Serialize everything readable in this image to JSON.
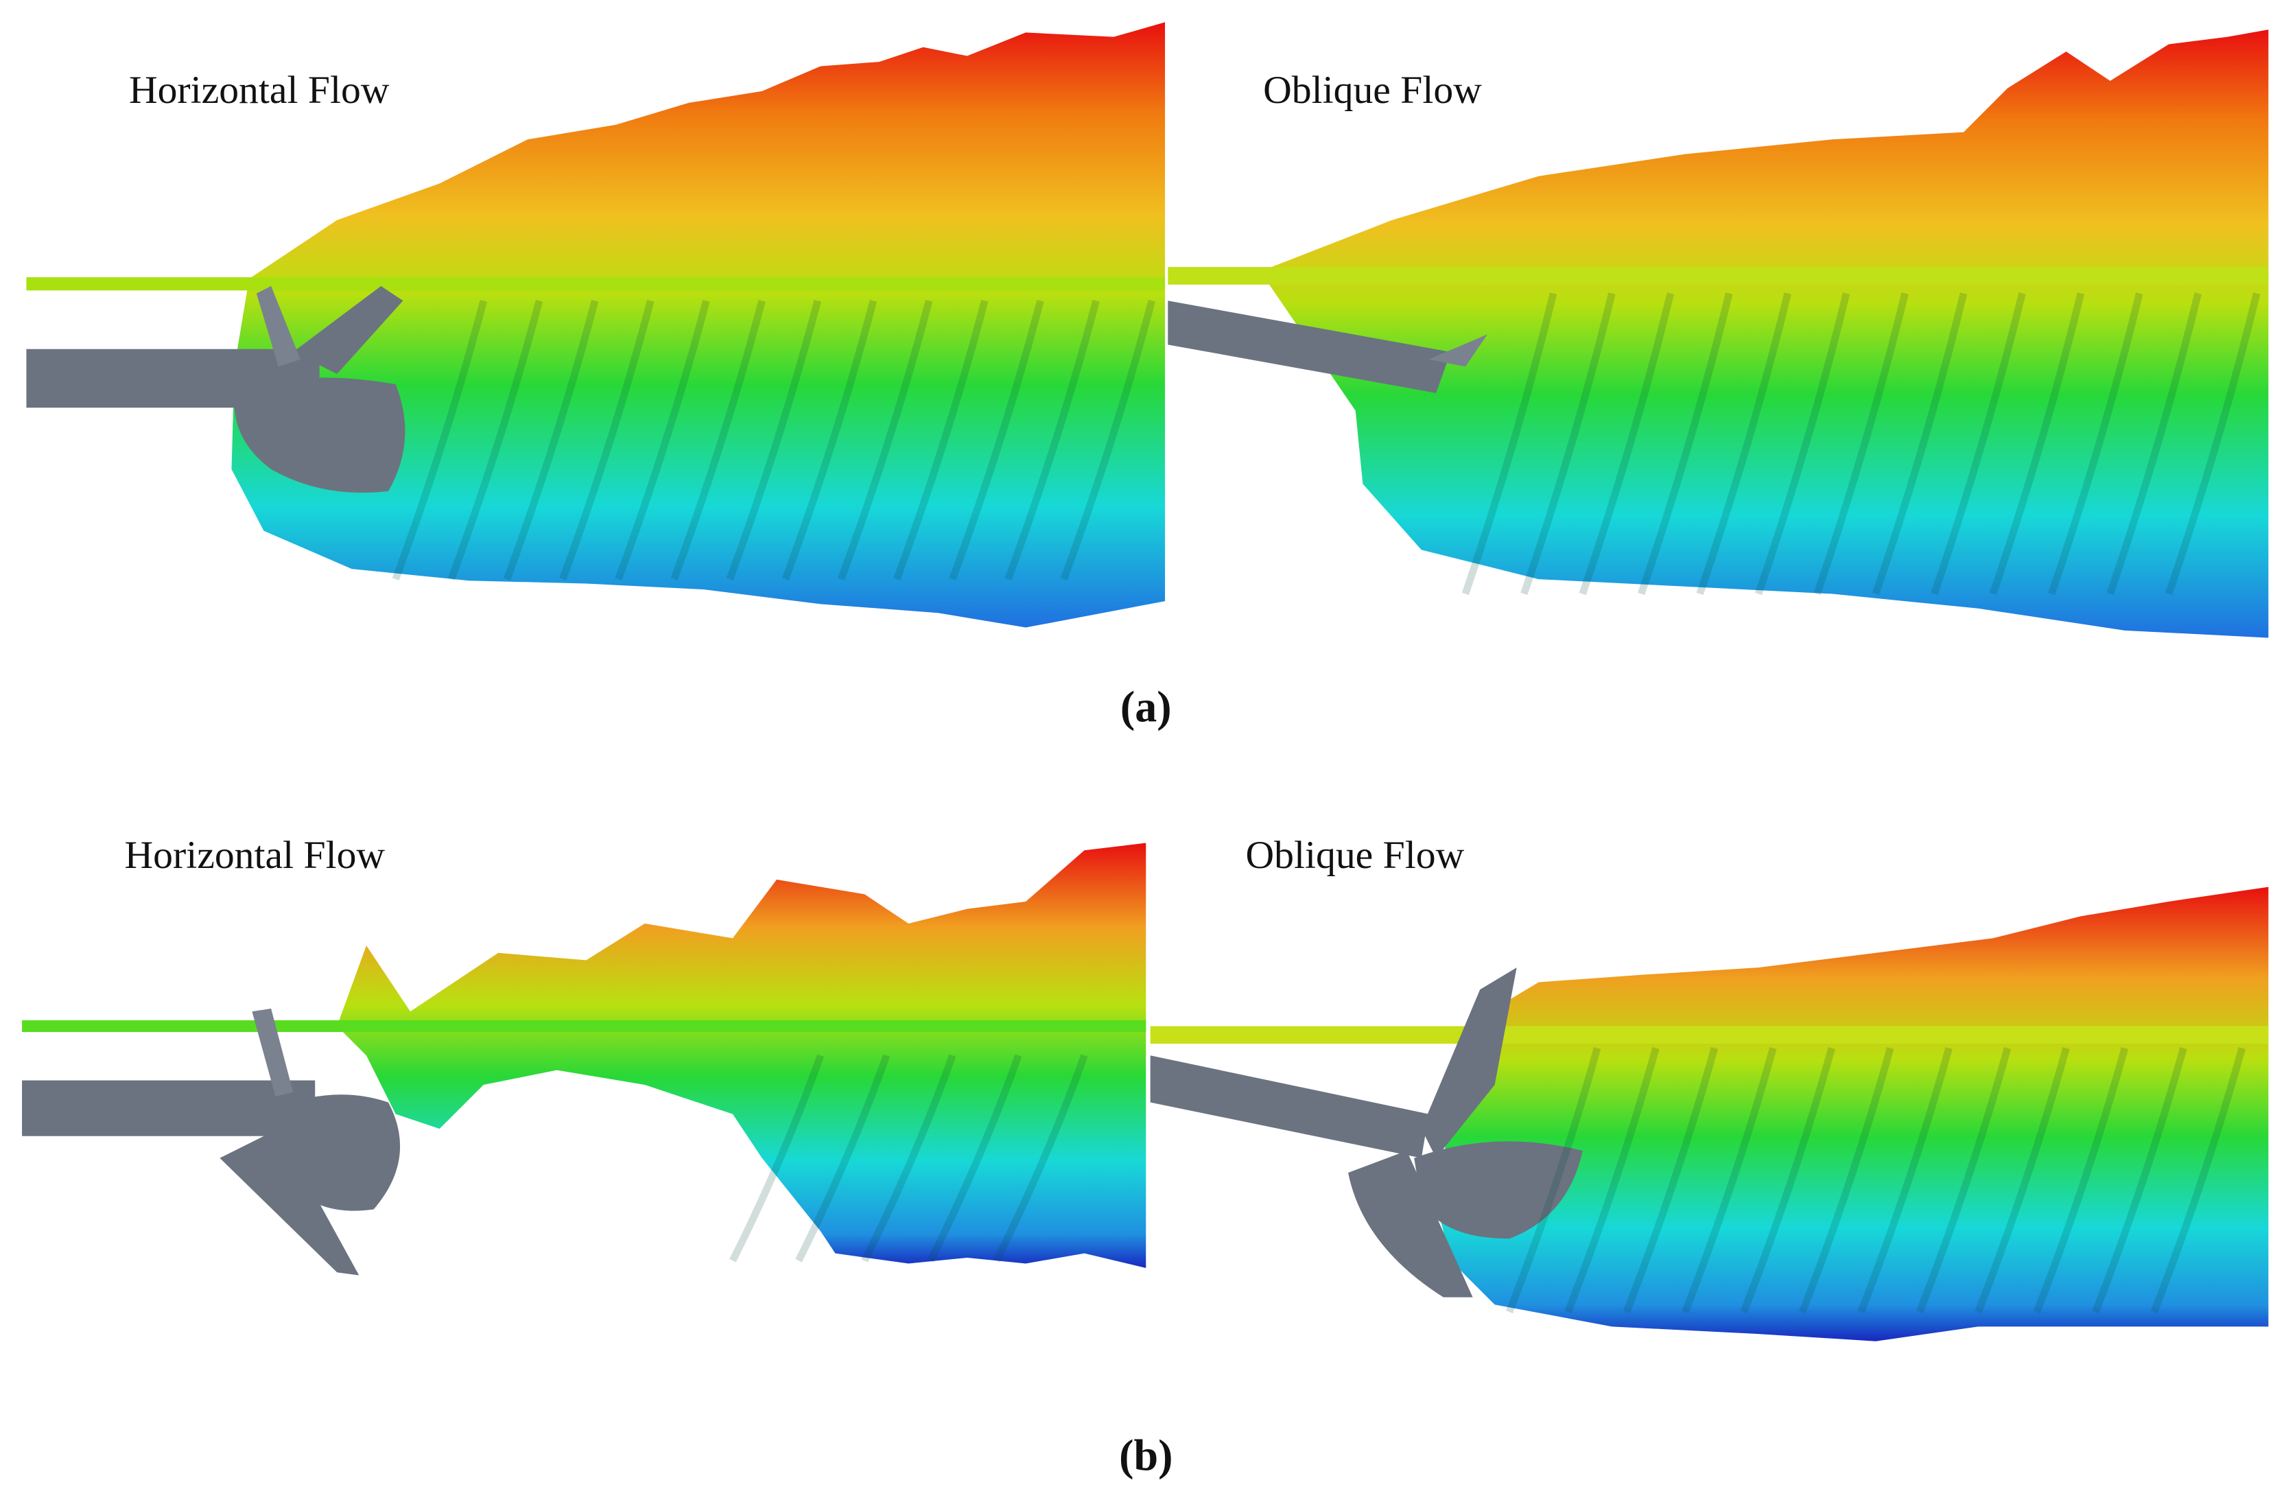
{
  "figure": {
    "panels": [
      {
        "label": "(a)",
        "views": [
          {
            "title": "Horizontal Flow"
          },
          {
            "title": "Oblique Flow"
          }
        ]
      },
      {
        "label": "(b)",
        "views": [
          {
            "title": "Horizontal Flow"
          },
          {
            "title": "Oblique Flow"
          }
        ]
      }
    ]
  }
}
